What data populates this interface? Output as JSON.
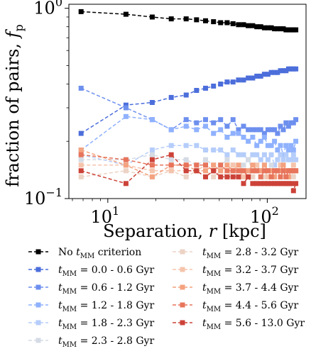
{
  "chart_data": {
    "type": "line",
    "xlabel": "Separation, ",
    "xlabel_var": "r",
    "xlabel_unit": " [kpc]",
    "ylabel": "fraction of pairs, ",
    "ylabel_var": "f",
    "ylabel_sub": "p",
    "x_scale": "log",
    "y_scale": "log",
    "xlim": [
      5.7,
      175
    ],
    "ylim": [
      0.1,
      1.05
    ],
    "x_ticks": [
      {
        "value": 10,
        "label_base": "10",
        "label_exp": "1"
      },
      {
        "value": 100,
        "label_base": "10",
        "label_exp": "2"
      }
    ],
    "y_ticks": [
      {
        "value": 0.1,
        "label_base": "10",
        "label_exp": "−1"
      },
      {
        "value": 1.0,
        "label_base": "10",
        "label_exp": "0"
      }
    ],
    "legend_position": "below",
    "marker": "square",
    "line_style": "dashed",
    "x_sparse": [
      6.8,
      13,
      19,
      25
    ],
    "x_dense": [
      31,
      36,
      41,
      46,
      51,
      56,
      61,
      66,
      71,
      76,
      81,
      86,
      91,
      96,
      101,
      106,
      111,
      116,
      121,
      126,
      131,
      136,
      141,
      146,
      151
    ],
    "series": [
      {
        "name_prefix": "No ",
        "name_var": "t",
        "name_sub": "MM",
        "name_suffix": " criterion",
        "color": "#000000",
        "values_sparse": [
          0.96,
          0.93,
          0.9,
          0.88
        ],
        "values_dense": [
          0.88,
          0.87,
          0.86,
          0.85,
          0.84,
          0.84,
          0.83,
          0.82,
          0.82,
          0.81,
          0.81,
          0.8,
          0.8,
          0.79,
          0.79,
          0.79,
          0.78,
          0.78,
          0.78,
          0.78,
          0.77,
          0.77,
          0.77,
          0.77,
          0.77
        ]
      },
      {
        "name_prefix": "",
        "name_var": "t",
        "name_sub": "MM",
        "name_suffix": " = 0.0 - 0.6 Gyr",
        "color": "#4c6edb",
        "values_sparse": [
          0.22,
          0.31,
          0.32,
          0.34
        ],
        "values_dense": [
          0.35,
          0.37,
          0.38,
          0.39,
          0.4,
          0.41,
          0.41,
          0.42,
          0.42,
          0.43,
          0.43,
          0.44,
          0.44,
          0.45,
          0.45,
          0.46,
          0.46,
          0.46,
          0.47,
          0.47,
          0.47,
          0.48,
          0.48,
          0.48,
          0.48
        ]
      },
      {
        "name_prefix": "",
        "name_var": "t",
        "name_sub": "MM",
        "name_suffix": " = 0.6 - 1.2 Gyr",
        "color": "#6d8fee",
        "values_sparse": [
          0.38,
          0.3,
          0.26,
          0.23
        ],
        "values_dense": [
          0.26,
          0.25,
          0.26,
          0.25,
          0.26,
          0.24,
          0.26,
          0.23,
          0.24,
          0.23,
          0.23,
          0.23,
          0.23,
          0.22,
          0.23,
          0.23,
          0.23,
          0.22,
          0.24,
          0.23,
          0.25,
          0.24,
          0.25,
          0.25,
          0.26
        ]
      },
      {
        "name_prefix": "",
        "name_var": "t",
        "name_sub": "MM",
        "name_suffix": " = 1.2 - 1.8 Gyr",
        "color": "#8fb1fe",
        "values_sparse": [
          0.18,
          0.27,
          0.26,
          0.23
        ],
        "values_dense": [
          0.24,
          0.23,
          0.24,
          0.22,
          0.23,
          0.21,
          0.22,
          0.22,
          0.21,
          0.2,
          0.21,
          0.19,
          0.2,
          0.21,
          0.19,
          0.19,
          0.2,
          0.18,
          0.19,
          0.17,
          0.19,
          0.18,
          0.19,
          0.18,
          0.2
        ]
      },
      {
        "name_prefix": "",
        "name_var": "t",
        "name_sub": "MM",
        "name_suffix": " = 1.8 - 2.3 Gyr",
        "color": "#b5cdfa",
        "values_sparse": [
          0.17,
          0.15,
          0.18,
          0.19
        ],
        "values_dense": [
          0.19,
          0.19,
          0.18,
          0.18,
          0.18,
          0.17,
          0.18,
          0.17,
          0.17,
          0.16,
          0.17,
          0.17,
          0.16,
          0.17,
          0.16,
          0.17,
          0.15,
          0.16,
          0.17,
          0.16,
          0.17,
          0.16,
          0.16,
          0.17,
          0.16
        ]
      },
      {
        "name_prefix": "",
        "name_var": "t",
        "name_sub": "MM",
        "name_suffix": " = 2.3 - 2.8 Gyr",
        "color": "#d5dbe5",
        "values_sparse": [
          0.16,
          0.16,
          0.17,
          0.16
        ],
        "values_dense": [
          0.16,
          0.15,
          0.16,
          0.15,
          0.15,
          0.16,
          0.15,
          0.14,
          0.15,
          0.16,
          0.14,
          0.15,
          0.14,
          0.15,
          0.14,
          0.15,
          0.14,
          0.14,
          0.15,
          0.14,
          0.14,
          0.13,
          0.14,
          0.14,
          0.14
        ]
      },
      {
        "name_prefix": "",
        "name_var": "t",
        "name_sub": "MM",
        "name_suffix": " = 2.8 - 3.2 Gyr",
        "color": "#ecd3c5",
        "values_sparse": [
          0.13,
          0.14,
          0.13,
          0.14
        ],
        "values_dense": [
          0.13,
          0.14,
          0.14,
          0.13,
          0.14,
          0.13,
          0.14,
          0.13,
          0.14,
          0.14,
          0.13,
          0.14,
          0.14,
          0.13,
          0.14,
          0.14,
          0.13,
          0.14,
          0.13,
          0.14,
          0.13,
          0.14,
          0.14,
          0.13,
          0.14
        ]
      },
      {
        "name_prefix": "",
        "name_var": "t",
        "name_sub": "MM",
        "name_suffix": " = 3.2 - 3.7 Gyr",
        "color": "#f5c4ac",
        "values_sparse": [
          0.15,
          0.15,
          0.14,
          0.14
        ],
        "values_dense": [
          0.14,
          0.14,
          0.15,
          0.14,
          0.14,
          0.14,
          0.15,
          0.14,
          0.13,
          0.14,
          0.14,
          0.15,
          0.14,
          0.14,
          0.13,
          0.14,
          0.14,
          0.14,
          0.15,
          0.14,
          0.14,
          0.14,
          0.14,
          0.15,
          0.14
        ]
      },
      {
        "name_prefix": "",
        "name_var": "t",
        "name_sub": "MM",
        "name_suffix": " = 3.7 - 4.4 Gyr",
        "color": "#f4a27f",
        "values_sparse": [
          0.18,
          0.15,
          0.13,
          0.15
        ],
        "values_dense": [
          0.15,
          0.14,
          0.14,
          0.15,
          0.14,
          0.15,
          0.14,
          0.15,
          0.14,
          0.14,
          0.15,
          0.14,
          0.14,
          0.15,
          0.14,
          0.14,
          0.13,
          0.14,
          0.14,
          0.15,
          0.14,
          0.13,
          0.14,
          0.14,
          0.14
        ]
      },
      {
        "name_prefix": "",
        "name_var": "t",
        "name_sub": "MM",
        "name_suffix": " = 4.4 - 5.6 Gyr",
        "color": "#e7745b",
        "values_sparse": [
          0.17,
          0.16,
          0.15,
          0.15
        ],
        "values_dense": [
          0.15,
          0.15,
          0.15,
          0.14,
          0.15,
          0.14,
          0.14,
          0.14,
          0.14,
          0.13,
          0.14,
          0.14,
          0.13,
          0.14,
          0.14,
          0.13,
          0.14,
          0.14,
          0.13,
          0.14,
          0.13,
          0.14,
          0.14,
          0.14,
          0.14
        ]
      },
      {
        "name_prefix": "",
        "name_var": "t",
        "name_sub": "MM",
        "name_suffix": " = 5.6 - 13.0 Gyr",
        "color": "#cc4238",
        "values_sparse": [
          0.14,
          0.12,
          0.16,
          0.17
        ],
        "values_dense": [
          0.14,
          0.14,
          0.13,
          0.14,
          0.13,
          0.13,
          0.13,
          0.13,
          0.12,
          0.13,
          0.12,
          0.12,
          0.12,
          0.12,
          0.12,
          0.12,
          0.12,
          0.12,
          0.12,
          0.12,
          0.12,
          0.12,
          0.12,
          0.11,
          0.12
        ]
      }
    ]
  }
}
